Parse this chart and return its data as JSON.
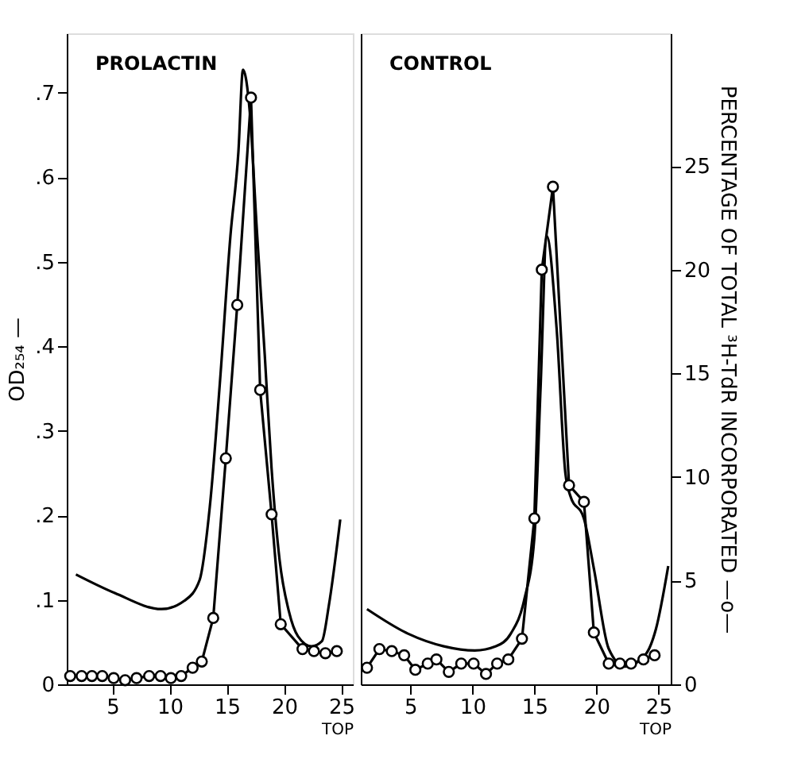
{
  "chart_data": [
    {
      "type": "line",
      "title": "PROLACTIN",
      "xlabel": "TOP",
      "ylabel": "OD₂₅₄ —",
      "xlim": [
        1,
        26
      ],
      "xticks": [
        5,
        10,
        15,
        20,
        25
      ],
      "ylim": [
        0,
        0.77
      ],
      "yticks": [
        {
          "value": 0,
          "label": "0"
        },
        {
          "value": 0.1,
          "label": ".1"
        },
        {
          "value": 0.2,
          "label": ".2"
        },
        {
          "value": 0.3,
          "label": ".3"
        },
        {
          "value": 0.4,
          "label": ".4"
        },
        {
          "value": 0.5,
          "label": ".5"
        },
        {
          "value": 0.6,
          "label": ".6"
        },
        {
          "value": 0.7,
          "label": ".7"
        }
      ],
      "y2lim": [
        0,
        31.4
      ],
      "grid": false,
      "series": [
        {
          "color": "#000000",
          "marker": "none",
          "x": [
            1.8,
            5.2,
            9.3,
            11.3,
            12.6,
            13.5,
            14.4,
            15.3,
            16.0,
            16.4,
            17.0,
            17.6,
            18.3,
            18.9,
            19.6,
            20.4,
            21.2,
            22.4,
            23.3,
            23.9,
            24.9
          ],
          "values": [
            0.13,
            0.108,
            0.089,
            0.099,
            0.123,
            0.21,
            0.36,
            0.53,
            0.63,
            0.727,
            0.676,
            0.54,
            0.39,
            0.255,
            0.147,
            0.087,
            0.057,
            0.045,
            0.051,
            0.093,
            0.195
          ]
        },
        {
          "color": "#000000",
          "marker": "circle",
          "axis": "y2",
          "x": [
            1.3,
            2.3,
            3.2,
            4.1,
            5.1,
            6.1,
            7.1,
            8.2,
            9.2,
            10.1,
            11.0,
            12.0,
            12.8,
            13.8,
            14.9,
            15.9,
            17.1,
            17.9,
            18.9,
            19.7,
            21.6,
            22.6,
            23.6,
            24.6
          ],
          "values": [
            0.4,
            0.4,
            0.4,
            0.4,
            0.3,
            0.2,
            0.3,
            0.4,
            0.4,
            0.3,
            0.4,
            0.8,
            1.1,
            3.2,
            10.9,
            18.3,
            28.3,
            14.2,
            8.2,
            2.9,
            1.7,
            1.6,
            1.5,
            1.6
          ]
        }
      ]
    },
    {
      "type": "line",
      "title": "CONTROL",
      "xlabel": "TOP",
      "y2label": "PERCENTAGE OF TOTAL ³H-TdR INCORPORATED —o—",
      "xlim": [
        1,
        26
      ],
      "xticks": [
        5,
        10,
        15,
        20,
        25
      ],
      "ylim": [
        0,
        0.77
      ],
      "y2lim": [
        0,
        31.4
      ],
      "y2ticks": [
        0,
        5,
        10,
        15,
        20,
        25
      ],
      "grid": false,
      "series": [
        {
          "color": "#000000",
          "marker": "none",
          "x": [
            1.5,
            4.8,
            7.7,
            10.2,
            11.9,
            13.1,
            14.2,
            15.0,
            15.5,
            16.0,
            16.8,
            17.5,
            17.9,
            19.0,
            19.8,
            21.0,
            22.3,
            24.0,
            24.8,
            25.8
          ],
          "values": [
            0.089,
            0.06,
            0.045,
            0.04,
            0.045,
            0.06,
            0.101,
            0.173,
            0.35,
            0.53,
            0.42,
            0.25,
            0.223,
            0.196,
            0.137,
            0.042,
            0.021,
            0.036,
            0.065,
            0.14
          ]
        },
        {
          "color": "#000000",
          "marker": "circle",
          "axis": "y2",
          "x": [
            1.5,
            2.5,
            3.5,
            4.5,
            5.4,
            6.4,
            7.1,
            8.1,
            9.1,
            10.1,
            11.1,
            12.0,
            12.9,
            14.0,
            15.0,
            15.6,
            16.5,
            17.8,
            19.0,
            19.8,
            21.0,
            21.9,
            22.8,
            23.8,
            24.7
          ],
          "values": [
            0.8,
            1.7,
            1.6,
            1.4,
            0.7,
            1.0,
            1.2,
            0.6,
            1.0,
            1.0,
            0.5,
            1.0,
            1.2,
            2.2,
            8.0,
            20.0,
            24.0,
            9.6,
            8.8,
            2.5,
            1.0,
            1.0,
            1.0,
            1.2,
            1.4
          ]
        }
      ]
    }
  ]
}
